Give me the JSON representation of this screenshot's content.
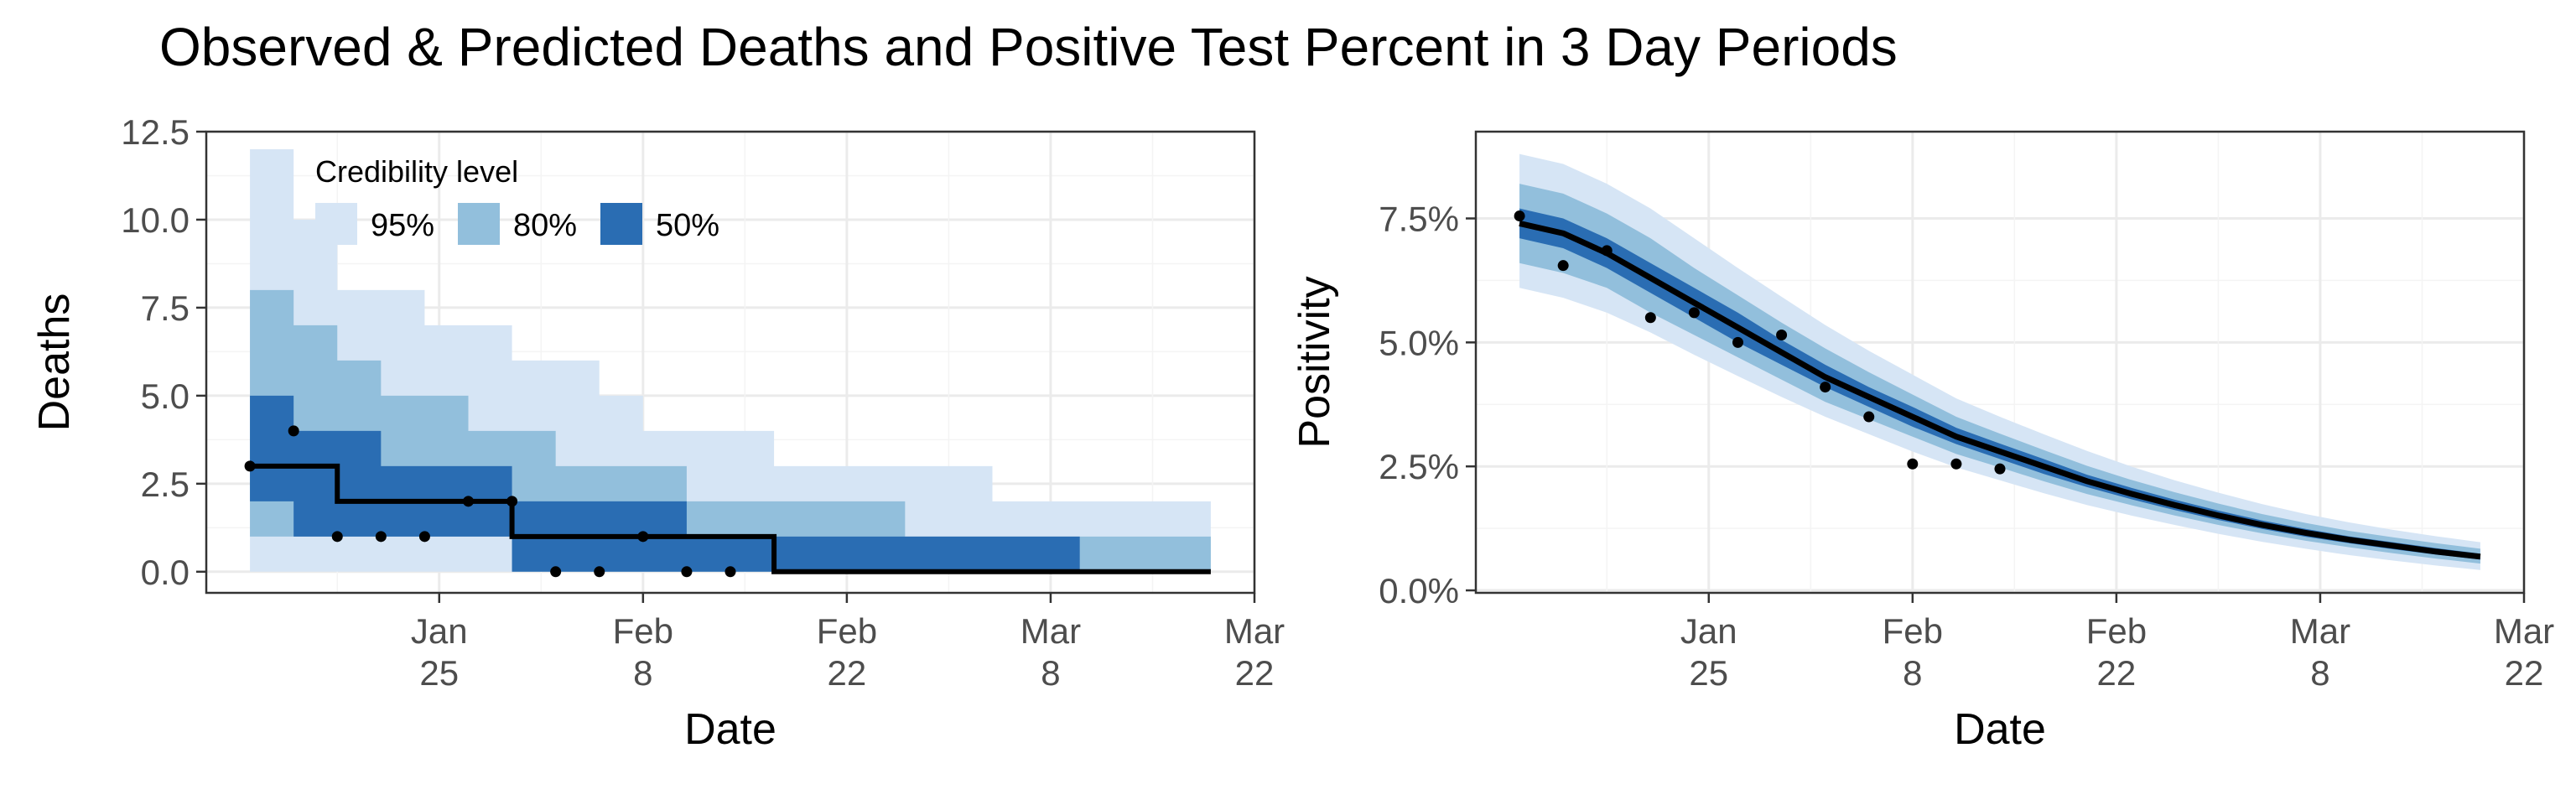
{
  "title": "Observed & Predicted Deaths and Positive Test Percent in 3 Day Periods",
  "colors": {
    "ci95": "#d6e5f5",
    "ci80": "#92bfdc",
    "ci50": "#2a6db3",
    "median": "#000000",
    "observed": "#000000",
    "grid_major": "#ebebeb",
    "grid_minor": "#f4f4f4",
    "panel_border": "#333333"
  },
  "legend": {
    "title": "Credibility level",
    "items": [
      {
        "label": "95%",
        "color": "#d6e5f5"
      },
      {
        "label": "80%",
        "color": "#92bfdc"
      },
      {
        "label": "50%",
        "color": "#2a6db3"
      }
    ]
  },
  "chart_data": [
    {
      "type": "area",
      "step": true,
      "xlabel": "Date",
      "ylabel": "Deaths",
      "xlim": [
        "2021-01-09",
        "2021-03-22"
      ],
      "ylim": [
        -0.6,
        12.5
      ],
      "x_ticks": [
        {
          "date": "2021-01-25",
          "label": [
            "Jan",
            "25"
          ]
        },
        {
          "date": "2021-02-08",
          "label": [
            "Feb",
            "8"
          ]
        },
        {
          "date": "2021-02-22",
          "label": [
            "Feb",
            "22"
          ]
        },
        {
          "date": "2021-03-08",
          "label": [
            "Mar",
            "8"
          ]
        },
        {
          "date": "2021-03-22",
          "label": [
            "Mar",
            "22"
          ]
        }
      ],
      "y_ticks": [
        {
          "value": 0,
          "label": "0.0"
        },
        {
          "value": 2.5,
          "label": "2.5"
        },
        {
          "value": 5,
          "label": "5.0"
        },
        {
          "value": 7.5,
          "label": "7.5"
        },
        {
          "value": 10,
          "label": "10.0"
        },
        {
          "value": 12.5,
          "label": "12.5"
        }
      ],
      "periods": [
        "2021-01-12",
        "2021-01-15",
        "2021-01-18",
        "2021-01-21",
        "2021-01-24",
        "2021-01-27",
        "2021-01-30",
        "2021-02-02",
        "2021-02-05",
        "2021-02-08",
        "2021-02-11",
        "2021-02-14",
        "2021-02-17",
        "2021-02-20",
        "2021-02-23",
        "2021-02-26",
        "2021-03-01",
        "2021-03-04",
        "2021-03-07",
        "2021-03-10",
        "2021-03-13",
        "2021-03-16",
        "2021-03-19"
      ],
      "period_end": "2021-03-19",
      "median": [
        3,
        3,
        2,
        2,
        2,
        2,
        1,
        1,
        1,
        1,
        1,
        1,
        0,
        0,
        0,
        0,
        0,
        0,
        0,
        0,
        0,
        0,
        0
      ],
      "ci50_lo": [
        2,
        1,
        1,
        1,
        1,
        1,
        0,
        0,
        0,
        0,
        0,
        0,
        0,
        0,
        0,
        0,
        0,
        0,
        0,
        0,
        0,
        0,
        0
      ],
      "ci50_hi": [
        5,
        4,
        4,
        3,
        3,
        3,
        2,
        2,
        2,
        2,
        1,
        1,
        1,
        1,
        1,
        1,
        1,
        1,
        1,
        0,
        0,
        0,
        0
      ],
      "ci80_lo": [
        1,
        1,
        1,
        1,
        1,
        1,
        0,
        0,
        0,
        0,
        0,
        0,
        0,
        0,
        0,
        0,
        0,
        0,
        0,
        0,
        0,
        0,
        0
      ],
      "ci80_hi": [
        8,
        7,
        6,
        5,
        5,
        4,
        4,
        3,
        3,
        3,
        2,
        2,
        2,
        2,
        2,
        1,
        1,
        1,
        1,
        1,
        1,
        1,
        1
      ],
      "ci95_lo": [
        0,
        0,
        0,
        0,
        0,
        0,
        0,
        0,
        0,
        0,
        0,
        0,
        0,
        0,
        0,
        0,
        0,
        0,
        0,
        0,
        0,
        0,
        0
      ],
      "ci95_hi": [
        12,
        10,
        8,
        8,
        7,
        7,
        6,
        6,
        5,
        4,
        4,
        4,
        3,
        3,
        3,
        3,
        3,
        2,
        2,
        2,
        2,
        2,
        2
      ],
      "observed": [
        {
          "x": "2021-01-12",
          "y": 3
        },
        {
          "x": "2021-01-15",
          "y": 4
        },
        {
          "x": "2021-01-18",
          "y": 1
        },
        {
          "x": "2021-01-21",
          "y": 1
        },
        {
          "x": "2021-01-24",
          "y": 1
        },
        {
          "x": "2021-01-27",
          "y": 2
        },
        {
          "x": "2021-01-30",
          "y": 2
        },
        {
          "x": "2021-02-02",
          "y": 0
        },
        {
          "x": "2021-02-05",
          "y": 0
        },
        {
          "x": "2021-02-08",
          "y": 1
        },
        {
          "x": "2021-02-11",
          "y": 0
        },
        {
          "x": "2021-02-14",
          "y": 0
        }
      ]
    },
    {
      "type": "area",
      "step": false,
      "xlabel": "Date",
      "ylabel": "Positivity",
      "xlim": [
        "2021-01-09",
        "2021-03-22"
      ],
      "ylim": [
        -0.0005,
        0.0925
      ],
      "x_ticks": [
        {
          "date": "2021-01-25",
          "label": [
            "Jan",
            "25"
          ]
        },
        {
          "date": "2021-02-08",
          "label": [
            "Feb",
            "8"
          ]
        },
        {
          "date": "2021-02-22",
          "label": [
            "Feb",
            "22"
          ]
        },
        {
          "date": "2021-03-08",
          "label": [
            "Mar",
            "8"
          ]
        },
        {
          "date": "2021-03-22",
          "label": [
            "Mar",
            "22"
          ]
        }
      ],
      "y_ticks": [
        {
          "value": 0,
          "label": "0.0%"
        },
        {
          "value": 0.025,
          "label": "2.5%"
        },
        {
          "value": 0.05,
          "label": "5.0%"
        },
        {
          "value": 0.075,
          "label": "7.5%"
        }
      ],
      "x": [
        "2021-01-12",
        "2021-01-15",
        "2021-01-18",
        "2021-01-21",
        "2021-01-24",
        "2021-01-27",
        "2021-01-30",
        "2021-02-02",
        "2021-02-05",
        "2021-02-08",
        "2021-02-11",
        "2021-02-14",
        "2021-02-17",
        "2021-02-20",
        "2021-02-23",
        "2021-02-26",
        "2021-03-01",
        "2021-03-04",
        "2021-03-07",
        "2021-03-10",
        "2021-03-13",
        "2021-03-16",
        "2021-03-19"
      ],
      "median": [
        0.074,
        0.072,
        0.068,
        0.063,
        0.058,
        0.053,
        0.048,
        0.043,
        0.039,
        0.035,
        0.031,
        0.028,
        0.025,
        0.022,
        0.0195,
        0.0172,
        0.0151,
        0.0132,
        0.0116,
        0.0102,
        0.009,
        0.0078,
        0.0068
      ],
      "ci50_lo": [
        0.071,
        0.069,
        0.065,
        0.06,
        0.055,
        0.05,
        0.0455,
        0.041,
        0.037,
        0.033,
        0.0295,
        0.0265,
        0.0235,
        0.0208,
        0.0184,
        0.0162,
        0.0142,
        0.0124,
        0.0108,
        0.0095,
        0.0083,
        0.0072,
        0.0062
      ],
      "ci50_hi": [
        0.077,
        0.075,
        0.071,
        0.066,
        0.061,
        0.056,
        0.0505,
        0.0455,
        0.041,
        0.037,
        0.0328,
        0.0296,
        0.0265,
        0.0233,
        0.0207,
        0.0183,
        0.0161,
        0.0141,
        0.0124,
        0.0109,
        0.0097,
        0.0085,
        0.0074
      ],
      "ci80_lo": [
        0.066,
        0.064,
        0.061,
        0.056,
        0.0515,
        0.047,
        0.0425,
        0.038,
        0.0345,
        0.031,
        0.0275,
        0.0248,
        0.022,
        0.0194,
        0.0172,
        0.0151,
        0.0132,
        0.0115,
        0.01,
        0.0087,
        0.0075,
        0.0064,
        0.0054
      ],
      "ci80_hi": [
        0.082,
        0.08,
        0.076,
        0.071,
        0.065,
        0.0595,
        0.054,
        0.0488,
        0.044,
        0.0395,
        0.035,
        0.0316,
        0.0283,
        0.0251,
        0.0223,
        0.0198,
        0.0175,
        0.0154,
        0.0136,
        0.012,
        0.0107,
        0.0095,
        0.0084
      ],
      "ci95_lo": [
        0.061,
        0.059,
        0.056,
        0.052,
        0.0475,
        0.0432,
        0.039,
        0.035,
        0.0315,
        0.028,
        0.0248,
        0.0222,
        0.0196,
        0.0172,
        0.0151,
        0.0132,
        0.0114,
        0.0098,
        0.0084,
        0.0071,
        0.006,
        0.005,
        0.0041
      ],
      "ci95_hi": [
        0.088,
        0.086,
        0.082,
        0.077,
        0.071,
        0.065,
        0.0592,
        0.0535,
        0.0483,
        0.0435,
        0.0387,
        0.035,
        0.0315,
        0.0281,
        0.025,
        0.0222,
        0.0197,
        0.0174,
        0.0154,
        0.0137,
        0.0122,
        0.0109,
        0.0097
      ],
      "observed": [
        {
          "x": "2021-01-12",
          "y": 0.0755
        },
        {
          "x": "2021-01-15",
          "y": 0.0655
        },
        {
          "x": "2021-01-18",
          "y": 0.0685
        },
        {
          "x": "2021-01-21",
          "y": 0.055
        },
        {
          "x": "2021-01-24",
          "y": 0.056
        },
        {
          "x": "2021-01-27",
          "y": 0.05
        },
        {
          "x": "2021-01-30",
          "y": 0.0515
        },
        {
          "x": "2021-02-02",
          "y": 0.041
        },
        {
          "x": "2021-02-05",
          "y": 0.035
        },
        {
          "x": "2021-02-08",
          "y": 0.0255
        },
        {
          "x": "2021-02-11",
          "y": 0.0255
        },
        {
          "x": "2021-02-14",
          "y": 0.0245
        }
      ]
    }
  ]
}
